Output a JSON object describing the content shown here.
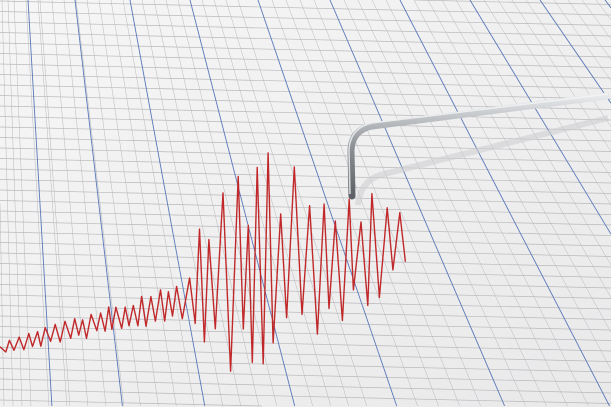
{
  "scene": {
    "subject": "seismograph",
    "paper_color": "#f3f3f3",
    "minor_grid_color": "#b9b9bd",
    "major_grid_color": "#5a78b8",
    "trace_color": "#c0282a",
    "stylus_color": "#9a9ea3"
  }
}
